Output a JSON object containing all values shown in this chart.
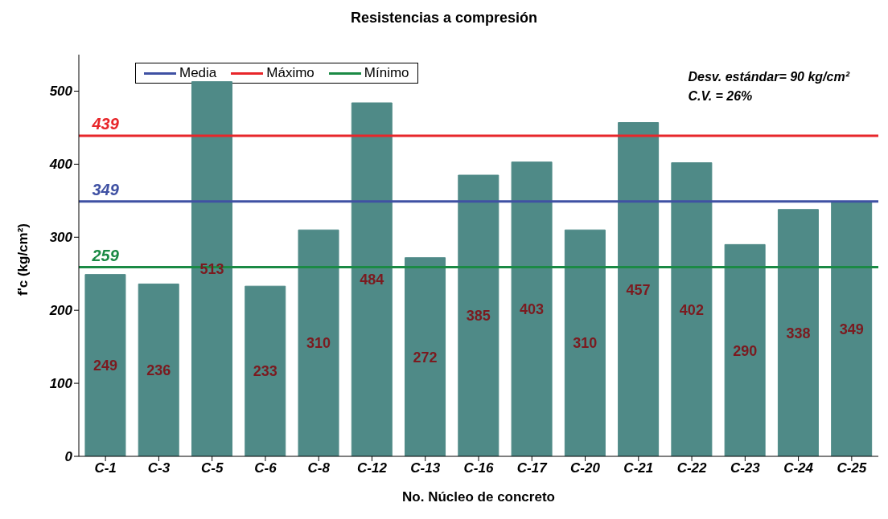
{
  "chart_data": {
    "type": "bar",
    "title": "Resistencias a compresión",
    "xlabel": "No. Núcleo de concreto",
    "ylabel": "f'c (kg/cm²)",
    "categories": [
      "C-1",
      "C-3",
      "C-5",
      "C-6",
      "C-8",
      "C-12",
      "C-13",
      "C-16",
      "C-17",
      "C-20",
      "C-21",
      "C-22",
      "C-23",
      "C-24",
      "C-25"
    ],
    "values": [
      249,
      236,
      513,
      233,
      310,
      484,
      272,
      385,
      403,
      310,
      457,
      402,
      290,
      338,
      349
    ],
    "color": "#4f8a87",
    "ylim": [
      0,
      550
    ],
    "yticks": [
      0,
      100,
      200,
      300,
      400,
      500
    ],
    "data_labels": true,
    "legend": "top left",
    "ref_lines": [
      {
        "axis": "y",
        "value": 349,
        "label": "Media",
        "color": "#3f51a3"
      },
      {
        "axis": "y",
        "value": 439,
        "label": "Máximo",
        "color": "#e8262a"
      },
      {
        "axis": "y",
        "value": 259,
        "label": "Mínimo",
        "color": "#1b8a45"
      }
    ],
    "annotations": [
      {
        "text": "439",
        "x": "C-1",
        "y": 439
      },
      {
        "text": "349",
        "x": "C-1",
        "y": 349
      },
      {
        "text": "259",
        "x": "C-1",
        "y": 259
      },
      "Desv. estándar= 90 kg/cm²",
      "C.V. = 26%"
    ]
  }
}
